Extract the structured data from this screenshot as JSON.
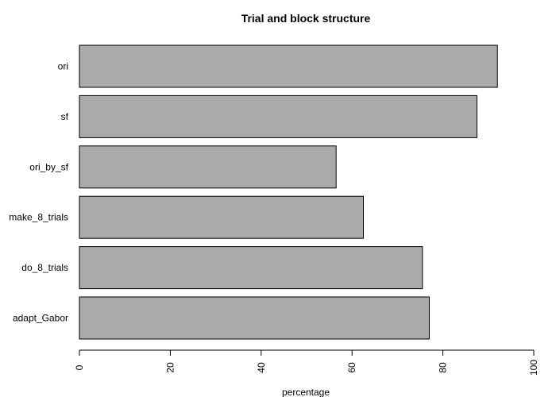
{
  "chart_data": {
    "type": "bar",
    "orientation": "horizontal",
    "title": "Trial and block structure",
    "xlabel": "percentage",
    "ylabel": "",
    "categories": [
      "ori",
      "sf",
      "ori_by_sf",
      "make_8_trials",
      "do_8_trials",
      "adapt_Gabor"
    ],
    "values": [
      92,
      87.5,
      56.5,
      62.5,
      75.5,
      77
    ],
    "xlim": [
      0,
      100
    ],
    "xticks": [
      0,
      20,
      40,
      60,
      80,
      100
    ],
    "grid": false,
    "legend": "none",
    "bar_color": "#aaaaaa",
    "bar_border_color": "#000000"
  }
}
